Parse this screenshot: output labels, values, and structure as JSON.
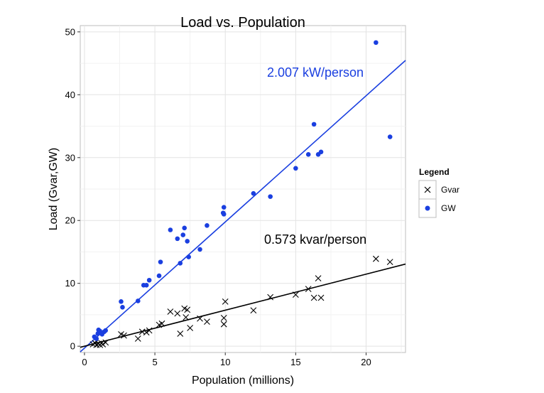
{
  "chart_data": {
    "type": "scatter",
    "title": "Load vs. Population",
    "xlabel": "Population (millions)",
    "ylabel": "Load (Gvar,GW)",
    "xlim": [
      -0.3,
      22.8
    ],
    "ylim": [
      -1,
      51
    ],
    "xticks": [
      0,
      5,
      10,
      15,
      20
    ],
    "yticks": [
      0,
      10,
      20,
      30,
      40,
      50
    ],
    "grid": true,
    "legend": {
      "title": "Legend",
      "position": "right",
      "entries": [
        "Gvar",
        "GW"
      ]
    },
    "series": [
      {
        "name": "Gvar",
        "marker": "x",
        "color": "#000000",
        "points": [
          [
            0.6,
            0.3
          ],
          [
            0.75,
            0.5
          ],
          [
            0.85,
            0.2
          ],
          [
            1.0,
            0.4
          ],
          [
            1.1,
            0.2
          ],
          [
            1.2,
            0.5
          ],
          [
            1.3,
            0.3
          ],
          [
            1.5,
            0.6
          ],
          [
            2.6,
            1.9
          ],
          [
            2.8,
            1.7
          ],
          [
            3.8,
            1.2
          ],
          [
            4.1,
            2.3
          ],
          [
            4.4,
            2.2
          ],
          [
            4.6,
            2.5
          ],
          [
            5.3,
            3.4
          ],
          [
            5.5,
            3.6
          ],
          [
            6.1,
            5.5
          ],
          [
            6.6,
            5.2
          ],
          [
            6.8,
            2.0
          ],
          [
            7.1,
            6.0
          ],
          [
            7.2,
            4.6
          ],
          [
            7.3,
            5.8
          ],
          [
            7.5,
            2.9
          ],
          [
            8.2,
            4.4
          ],
          [
            8.7,
            3.9
          ],
          [
            9.9,
            4.5
          ],
          [
            9.9,
            3.5
          ],
          [
            10.0,
            7.1
          ],
          [
            12.0,
            5.7
          ],
          [
            13.2,
            7.8
          ],
          [
            15.0,
            8.2
          ],
          [
            15.9,
            9.1
          ],
          [
            16.3,
            7.7
          ],
          [
            16.6,
            10.8
          ],
          [
            16.8,
            7.7
          ],
          [
            20.7,
            13.9
          ],
          [
            21.7,
            13.4
          ]
        ]
      },
      {
        "name": "GW",
        "marker": "dot",
        "color": "#1a3fe0",
        "points": [
          [
            0.7,
            1.5
          ],
          [
            0.85,
            1.2
          ],
          [
            0.95,
            2.0
          ],
          [
            1.0,
            2.6
          ],
          [
            1.1,
            2.4
          ],
          [
            1.25,
            1.9
          ],
          [
            1.4,
            2.3
          ],
          [
            1.5,
            2.5
          ],
          [
            2.6,
            7.1
          ],
          [
            2.7,
            6.2
          ],
          [
            3.8,
            7.2
          ],
          [
            4.2,
            9.7
          ],
          [
            4.4,
            9.7
          ],
          [
            4.6,
            10.5
          ],
          [
            5.3,
            11.2
          ],
          [
            5.4,
            13.4
          ],
          [
            6.1,
            18.5
          ],
          [
            6.6,
            17.1
          ],
          [
            6.8,
            13.2
          ],
          [
            7.0,
            17.7
          ],
          [
            7.1,
            18.8
          ],
          [
            7.3,
            16.7
          ],
          [
            7.4,
            14.2
          ],
          [
            8.2,
            15.4
          ],
          [
            8.7,
            19.2
          ],
          [
            9.9,
            22.1
          ],
          [
            9.9,
            21.0
          ],
          [
            9.85,
            21.2
          ],
          [
            12.0,
            24.3
          ],
          [
            13.2,
            23.8
          ],
          [
            15.0,
            28.3
          ],
          [
            15.9,
            30.5
          ],
          [
            16.3,
            35.3
          ],
          [
            16.6,
            30.5
          ],
          [
            16.8,
            30.9
          ],
          [
            20.7,
            48.3
          ],
          [
            21.7,
            33.3
          ]
        ]
      }
    ],
    "fit_lines": [
      {
        "series": "GW",
        "slope": 2.007,
        "intercept": -0.3,
        "color": "#1a3fe0",
        "label": "2.007 kW/person"
      },
      {
        "series": "Gvar",
        "slope": 0.573,
        "intercept": 0.0,
        "color": "#000000",
        "label": "0.573 kvar/person"
      }
    ]
  }
}
